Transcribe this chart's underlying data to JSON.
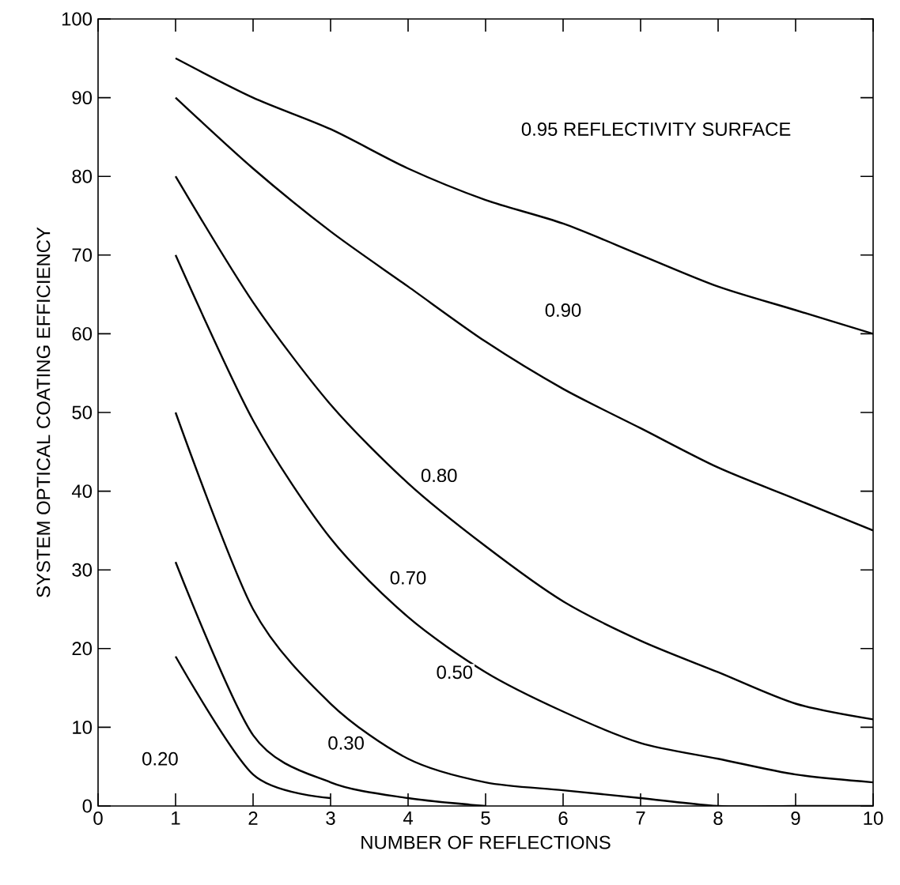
{
  "chart_data": {
    "type": "line",
    "xlabel": "NUMBER OF REFLECTIONS",
    "ylabel": "SYSTEM OPTICAL COATING EFFICIENCY",
    "xlim": [
      0,
      10
    ],
    "ylim": [
      0,
      100
    ],
    "xticks": [
      0,
      1,
      2,
      3,
      4,
      5,
      6,
      7,
      8,
      9,
      10
    ],
    "yticks": [
      0,
      10,
      20,
      30,
      40,
      50,
      60,
      70,
      80,
      90,
      100
    ],
    "grid": false,
    "marker": "none",
    "line_style": "solid",
    "series": [
      {
        "color": "#000000",
        "x": [
          1,
          2,
          3,
          4,
          5,
          6,
          7,
          8,
          9,
          10
        ],
        "values": [
          95,
          90,
          86,
          81,
          77,
          74,
          70,
          66,
          63,
          60
        ]
      },
      {
        "color": "#000000",
        "x": [
          1,
          2,
          3,
          4,
          5,
          6,
          7,
          8,
          9,
          10
        ],
        "values": [
          90,
          81,
          73,
          66,
          59,
          53,
          48,
          43,
          39,
          35
        ]
      },
      {
        "color": "#000000",
        "x": [
          1,
          2,
          3,
          4,
          5,
          6,
          7,
          8,
          9,
          10
        ],
        "values": [
          80,
          64,
          51,
          41,
          33,
          26,
          21,
          17,
          13,
          11
        ]
      },
      {
        "color": "#000000",
        "x": [
          1,
          2,
          3,
          4,
          5,
          6,
          7,
          8,
          9,
          10
        ],
        "values": [
          70,
          49,
          34,
          24,
          17,
          12,
          8,
          6,
          4,
          3
        ]
      },
      {
        "color": "#000000",
        "x": [
          1,
          2,
          3,
          4,
          5,
          6,
          7,
          8,
          9,
          10
        ],
        "values": [
          50,
          25,
          13,
          6,
          3,
          2,
          1,
          0,
          0,
          0
        ]
      },
      {
        "color": "#000000",
        "x": [
          1,
          2,
          3,
          4,
          5
        ],
        "values": [
          31,
          9,
          3,
          1,
          0
        ]
      },
      {
        "color": "#000000",
        "x": [
          1,
          2,
          3
        ],
        "values": [
          19,
          4,
          1
        ]
      }
    ],
    "annotations": [
      "0.95 REFLECTIVITY SURFACE",
      {
        "text": "0.90",
        "x": 6,
        "y": 63
      },
      {
        "text": "0.80",
        "x": 4.4,
        "y": 42
      },
      {
        "text": "0.70",
        "x": 4,
        "y": 29
      },
      {
        "text": "0.50",
        "x": 4.6,
        "y": 17
      },
      {
        "text": "0.30",
        "x": 3.2,
        "y": 8
      },
      {
        "text": "0.20",
        "x": 0.8,
        "y": 6
      }
    ]
  }
}
